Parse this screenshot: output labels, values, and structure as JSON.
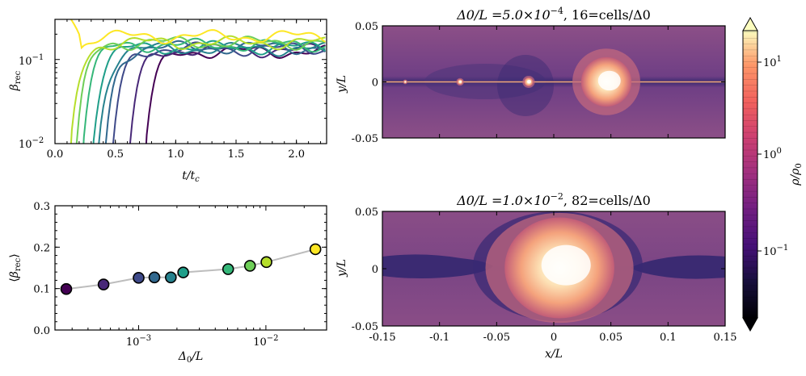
{
  "colors": {
    "viridis": [
      "#440154",
      "#482878",
      "#3e4989",
      "#31688e",
      "#26828e",
      "#1f9e89",
      "#35b779",
      "#6ece58",
      "#b5de2b",
      "#fde725"
    ],
    "magma_bg": "#7a4a86",
    "layer_dark": "#2a1b5a",
    "plasmoid": "#f7c69a",
    "fit_line": "#bdbdbd"
  },
  "chart_data": [
    {
      "id": "beta-timeseries",
      "type": "line",
      "xlabel": "t/t_c",
      "ylabel": "β_rec",
      "xlim": [
        0.0,
        2.25
      ],
      "ylim_log": [
        0.01,
        0.3
      ],
      "xticks": [
        "0.0",
        "0.5",
        "1.0",
        "1.5",
        "2.0"
      ],
      "yticks": [
        "10^-2",
        "10^-1"
      ],
      "series": [
        {
          "name": "Δ0/L=2.7e-4",
          "t0": 0.75,
          "plateau": 0.125
        },
        {
          "name": "Δ0/L=5.0e-4",
          "t0": 0.62,
          "plateau": 0.13
        },
        {
          "name": "Δ0/L=1.0e-3",
          "t0": 0.48,
          "plateau": 0.135
        },
        {
          "name": "Δ0/L=1.4e-3",
          "t0": 0.42,
          "plateau": 0.14
        },
        {
          "name": "Δ0/L=2.0e-3",
          "t0": 0.36,
          "plateau": 0.135
        },
        {
          "name": "Δ0/L=2.5e-3",
          "t0": 0.31,
          "plateau": 0.14
        },
        {
          "name": "Δ0/L=5.0e-3",
          "t0": 0.23,
          "plateau": 0.15
        },
        {
          "name": "Δ0/L=7.5e-3",
          "t0": 0.18,
          "plateau": 0.16
        },
        {
          "name": "Δ0/L=1.0e-2",
          "t0": 0.13,
          "plateau": 0.16
        },
        {
          "name": "Δ0/L=2.5e-2",
          "t0": 0.05,
          "plateau": 0.19
        }
      ]
    },
    {
      "id": "mean-beta-vs-delta",
      "type": "scatter",
      "xlabel": "Δ0/L",
      "ylabel": "⟨β_rec⟩",
      "xlim_log": [
        0.00022,
        0.03
      ],
      "ylim": [
        0.0,
        0.3
      ],
      "yticks": [
        "0.0",
        "0.1",
        "0.2",
        "0.3"
      ],
      "xticks": [
        "10^-3",
        "10^-2"
      ],
      "x": [
        0.00027,
        0.00053,
        0.001,
        0.00133,
        0.00179,
        0.00224,
        0.00505,
        0.0075,
        0.0101,
        0.0245
      ],
      "y": [
        0.099,
        0.11,
        0.126,
        0.127,
        0.127,
        0.139,
        0.147,
        0.155,
        0.164,
        0.195
      ]
    },
    {
      "id": "density-top",
      "type": "heatmap",
      "title_prefix": "Δ0/L =5.0×10",
      "title_exp": "−4",
      "title_suffix": ", 16=cells/Δ0",
      "ylabel": "y/L",
      "yticks": [
        "0.05",
        "0",
        "-0.05"
      ],
      "plasmoids": [
        {
          "x": -0.13,
          "r": 0.0015
        },
        {
          "x": -0.082,
          "r": 0.0025
        },
        {
          "x": -0.022,
          "r": 0.004
        },
        {
          "x": 0.046,
          "r": 0.022
        }
      ]
    },
    {
      "id": "density-bottom",
      "type": "heatmap",
      "title_prefix": "Δ0/L =1.0×10",
      "title_exp": "−2",
      "title_suffix": ", 82=cells/Δ0",
      "xlabel": "x/L",
      "ylabel": "y/L",
      "xticks": [
        "-0.15",
        "-0.1",
        "-0.05",
        "0",
        "0.05",
        "0.1",
        "0.15"
      ],
      "yticks": [
        "0.05",
        "0",
        "-0.05"
      ],
      "plasmoids": [
        {
          "x": 0.005,
          "r": 0.048
        }
      ]
    }
  ],
  "colorbar": {
    "label": "ρ/ρ0",
    "ticks": [
      "10^1",
      "10^0",
      "10^-1"
    ]
  }
}
